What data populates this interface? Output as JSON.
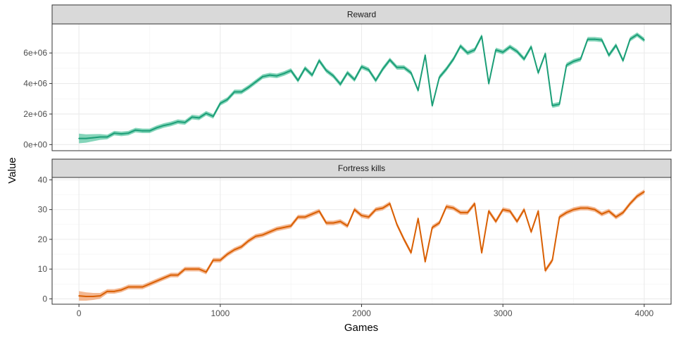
{
  "chart_data": {
    "type": "line",
    "xlabel": "Games",
    "ylabel": "Value",
    "xlim": [
      -190,
      4190
    ],
    "x_ticks": [
      0,
      1000,
      2000,
      3000,
      4000
    ],
    "x_tick_labels": [
      "0",
      "1000",
      "2000",
      "3000",
      "4000"
    ],
    "grid": true,
    "panels": [
      {
        "title": "Reward",
        "color": "#1b9e77",
        "ribbon_color": "#5cc7a3",
        "ylim": [
          -400000,
          7900000
        ],
        "y_ticks": [
          0,
          2000000,
          4000000,
          6000000
        ],
        "y_tick_labels": [
          "0e+00",
          "2e+06",
          "4e+06",
          "6e+06"
        ],
        "x": [
          0,
          50,
          100,
          150,
          200,
          250,
          300,
          350,
          400,
          450,
          500,
          550,
          600,
          650,
          700,
          750,
          800,
          850,
          900,
          950,
          1000,
          1050,
          1100,
          1150,
          1200,
          1250,
          1300,
          1350,
          1400,
          1450,
          1500,
          1550,
          1600,
          1650,
          1700,
          1750,
          1800,
          1850,
          1900,
          1950,
          2000,
          2050,
          2100,
          2150,
          2200,
          2250,
          2300,
          2350,
          2400,
          2450,
          2500,
          2550,
          2600,
          2650,
          2700,
          2750,
          2800,
          2850,
          2900,
          2950,
          3000,
          3050,
          3100,
          3150,
          3200,
          3250,
          3300,
          3350,
          3400,
          3450,
          3500,
          3550,
          3600,
          3650,
          3700,
          3750,
          3800,
          3850,
          3900,
          3950,
          4000
        ],
        "values": [
          400000,
          400000,
          450000,
          500000,
          500000,
          750000,
          700000,
          750000,
          950000,
          900000,
          900000,
          1100000,
          1250000,
          1350000,
          1500000,
          1450000,
          1800000,
          1750000,
          2050000,
          1850000,
          2700000,
          2950000,
          3450000,
          3450000,
          3750000,
          4100000,
          4450000,
          4550000,
          4500000,
          4650000,
          4850000,
          4200000,
          5000000,
          4550000,
          5500000,
          4850000,
          4500000,
          3950000,
          4700000,
          4250000,
          5100000,
          4900000,
          4200000,
          4950000,
          5550000,
          5050000,
          5050000,
          4700000,
          3550000,
          5850000,
          2550000,
          4400000,
          4950000,
          5600000,
          6450000,
          6000000,
          6200000,
          7100000,
          4000000,
          6200000,
          6050000,
          6400000,
          6100000,
          5600000,
          6400000,
          4700000,
          5950000,
          2550000,
          2650000,
          5200000,
          5450000,
          5600000,
          6900000,
          6900000,
          6850000,
          5850000,
          6500000,
          5500000,
          6900000,
          7200000,
          6850000
        ],
        "series_name": ""
      },
      {
        "title": "Fortress kills",
        "color": "#d95f02",
        "ribbon_color": "#f0a06e",
        "ylim": [
          -1.8,
          40.8
        ],
        "y_ticks": [
          0,
          10,
          20,
          30,
          40
        ],
        "y_tick_labels": [
          "0",
          "10",
          "20",
          "30",
          "40"
        ],
        "x": [
          0,
          50,
          100,
          150,
          200,
          250,
          300,
          350,
          400,
          450,
          500,
          550,
          600,
          650,
          700,
          750,
          800,
          850,
          900,
          950,
          1000,
          1050,
          1100,
          1150,
          1200,
          1250,
          1300,
          1350,
          1400,
          1450,
          1500,
          1550,
          1600,
          1650,
          1700,
          1750,
          1800,
          1850,
          1900,
          1950,
          2000,
          2050,
          2100,
          2150,
          2200,
          2250,
          2300,
          2350,
          2400,
          2450,
          2500,
          2550,
          2600,
          2650,
          2700,
          2750,
          2800,
          2850,
          2900,
          2950,
          3000,
          3050,
          3100,
          3150,
          3200,
          3250,
          3300,
          3350,
          3400,
          3450,
          3500,
          3550,
          3600,
          3650,
          3700,
          3750,
          3800,
          3850,
          3900,
          3950,
          4000
        ],
        "values": [
          1,
          0.8,
          0.8,
          1,
          2.5,
          2.5,
          3,
          4,
          4,
          4,
          5,
          6,
          7,
          8,
          8,
          10,
          10,
          10,
          9,
          13,
          13,
          15,
          16.5,
          17.5,
          19.5,
          21,
          21.5,
          22.5,
          23.5,
          24,
          24.5,
          27.5,
          27.5,
          28.5,
          29.5,
          25.5,
          25.5,
          26,
          24.5,
          30,
          28,
          27.5,
          30,
          30.5,
          32,
          25,
          20,
          15.5,
          27,
          12.5,
          24,
          25.5,
          31,
          30.5,
          29,
          29,
          32,
          15.5,
          29.5,
          26,
          30,
          29.5,
          26,
          30,
          22.5,
          29.5,
          9.5,
          13,
          27.5,
          29,
          30,
          30.5,
          30.5,
          30,
          28.5,
          29.5,
          27.5,
          29,
          32,
          34.5,
          36
        ],
        "series_name": ""
      }
    ]
  }
}
